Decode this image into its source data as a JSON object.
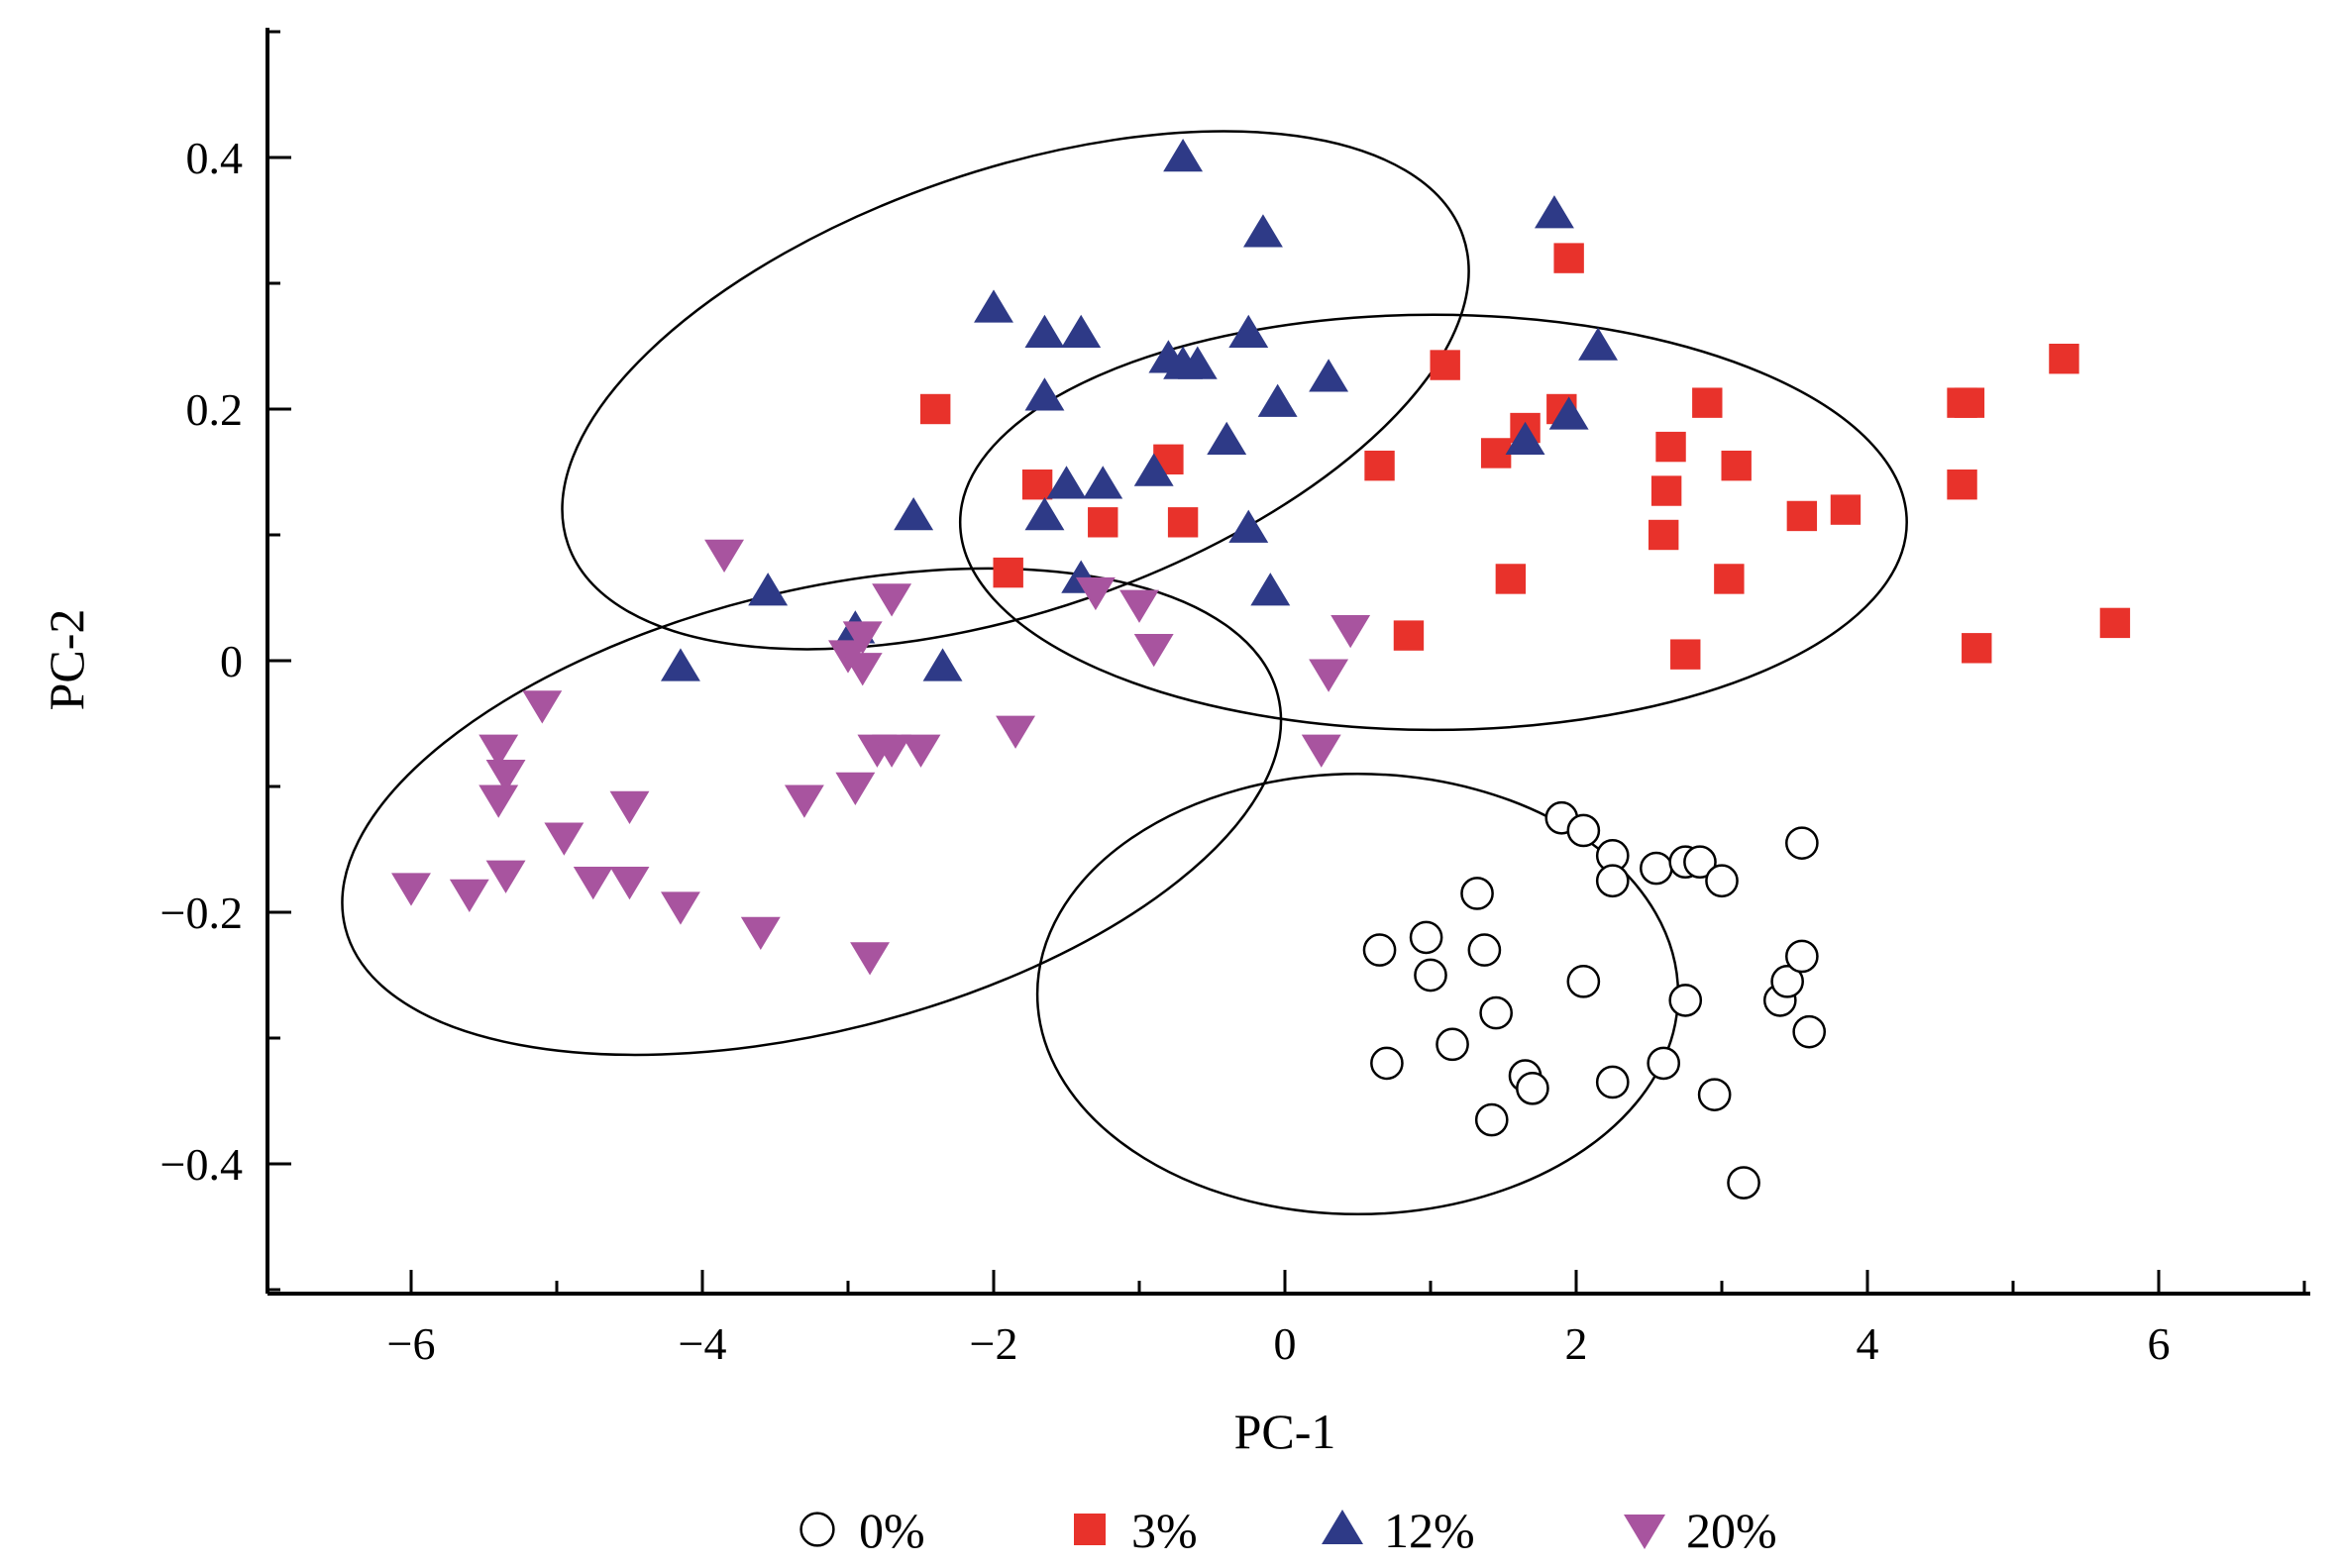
{
  "chart_data": {
    "type": "scatter",
    "title": "",
    "xlabel": "PC-1",
    "ylabel": "PC-2",
    "xlim": [
      -7,
      7
    ],
    "ylim": [
      -0.5,
      0.5
    ],
    "xticks": [
      -6,
      -4,
      -2,
      0,
      2,
      4,
      6
    ],
    "xtick_labels": [
      "−6",
      "−4",
      "−2",
      "0",
      "2",
      "4",
      "6"
    ],
    "yticks": [
      -0.4,
      -0.2,
      0,
      0.2,
      0.4
    ],
    "ytick_labels": [
      "−0.4",
      "−0.2",
      "0",
      "0.2",
      "0.4"
    ],
    "grid": false,
    "legend_position": "bottom",
    "series": [
      {
        "name": "0%",
        "marker": "circle-open",
        "color": "#000000",
        "points": [
          [
            0.65,
            -0.23
          ],
          [
            0.7,
            -0.32
          ],
          [
            0.97,
            -0.22
          ],
          [
            1.0,
            -0.25
          ],
          [
            1.15,
            -0.305
          ],
          [
            1.32,
            -0.185
          ],
          [
            1.37,
            -0.23
          ],
          [
            1.42,
            -0.365
          ],
          [
            1.45,
            -0.28
          ],
          [
            1.65,
            -0.33
          ],
          [
            1.7,
            -0.34
          ],
          [
            1.9,
            -0.125
          ],
          [
            2.05,
            -0.135
          ],
          [
            2.05,
            -0.255
          ],
          [
            2.25,
            -0.155
          ],
          [
            2.25,
            -0.175
          ],
          [
            2.25,
            -0.335
          ],
          [
            2.55,
            -0.165
          ],
          [
            2.6,
            -0.32
          ],
          [
            2.75,
            -0.27
          ],
          [
            2.75,
            -0.16
          ],
          [
            2.85,
            -0.16
          ],
          [
            2.95,
            -0.345
          ],
          [
            3.0,
            -0.175
          ],
          [
            3.15,
            -0.415
          ],
          [
            3.4,
            -0.27
          ],
          [
            3.45,
            -0.255
          ],
          [
            3.55,
            -0.145
          ],
          [
            3.55,
            -0.235
          ],
          [
            3.6,
            -0.295
          ]
        ]
      },
      {
        "name": "3%",
        "marker": "square",
        "color": "#e8322b",
        "points": [
          [
            -2.4,
            0.2
          ],
          [
            -1.7,
            0.14
          ],
          [
            -1.9,
            0.07
          ],
          [
            -1.25,
            0.11
          ],
          [
            -0.8,
            0.16
          ],
          [
            -0.7,
            0.11
          ],
          [
            0.65,
            0.155
          ],
          [
            0.85,
            0.02
          ],
          [
            1.1,
            0.235
          ],
          [
            1.45,
            0.165
          ],
          [
            1.55,
            0.065
          ],
          [
            1.65,
            0.185
          ],
          [
            1.9,
            0.2
          ],
          [
            1.95,
            0.32
          ],
          [
            2.6,
            0.1
          ],
          [
            2.62,
            0.135
          ],
          [
            2.65,
            0.17
          ],
          [
            2.75,
            0.005
          ],
          [
            2.9,
            0.205
          ],
          [
            3.05,
            0.065
          ],
          [
            3.1,
            0.155
          ],
          [
            3.55,
            0.115
          ],
          [
            3.85,
            0.12
          ],
          [
            4.65,
            0.14
          ],
          [
            4.65,
            0.205
          ],
          [
            4.7,
            0.205
          ],
          [
            4.75,
            0.01
          ],
          [
            5.35,
            0.24
          ],
          [
            5.7,
            0.03
          ]
        ]
      },
      {
        "name": "12%",
        "marker": "triangle-up",
        "color": "#2e3a87",
        "points": [
          [
            -4.15,
            -0.005
          ],
          [
            -3.55,
            0.055
          ],
          [
            -2.95,
            0.025
          ],
          [
            -2.55,
            0.115
          ],
          [
            -2.35,
            -0.005
          ],
          [
            -2.0,
            0.28
          ],
          [
            -1.65,
            0.26
          ],
          [
            -1.65,
            0.21
          ],
          [
            -1.65,
            0.115
          ],
          [
            -1.5,
            0.14
          ],
          [
            -1.4,
            0.26
          ],
          [
            -1.25,
            0.14
          ],
          [
            -1.4,
            0.065
          ],
          [
            -0.9,
            0.15
          ],
          [
            -0.8,
            0.24
          ],
          [
            -0.7,
            0.235
          ],
          [
            -0.6,
            0.235
          ],
          [
            -0.7,
            0.4
          ],
          [
            -0.4,
            0.175
          ],
          [
            -0.25,
            0.26
          ],
          [
            -0.25,
            0.105
          ],
          [
            -0.15,
            0.34
          ],
          [
            -0.05,
            0.205
          ],
          [
            -0.1,
            0.055
          ],
          [
            0.3,
            0.225
          ],
          [
            1.65,
            0.175
          ],
          [
            1.85,
            0.355
          ],
          [
            1.95,
            0.195
          ],
          [
            2.15,
            0.25
          ]
        ]
      },
      {
        "name": "20%",
        "marker": "triangle-down",
        "color": "#a8549f",
        "points": [
          [
            -6.0,
            -0.18
          ],
          [
            -5.6,
            -0.185
          ],
          [
            -5.35,
            -0.17
          ],
          [
            -5.4,
            -0.07
          ],
          [
            -5.35,
            -0.09
          ],
          [
            -5.4,
            -0.11
          ],
          [
            -5.1,
            -0.035
          ],
          [
            -4.95,
            -0.14
          ],
          [
            -4.75,
            -0.175
          ],
          [
            -4.5,
            -0.115
          ],
          [
            -4.5,
            -0.175
          ],
          [
            -4.15,
            -0.195
          ],
          [
            -3.85,
            0.085
          ],
          [
            -3.6,
            -0.215
          ],
          [
            -3.3,
            -0.11
          ],
          [
            -3.0,
            0.005
          ],
          [
            -2.95,
            -0.1
          ],
          [
            -2.9,
            0.02
          ],
          [
            -2.9,
            -0.005
          ],
          [
            -2.8,
            -0.07
          ],
          [
            -2.85,
            -0.235
          ],
          [
            -2.7,
            0.05
          ],
          [
            -2.7,
            -0.07
          ],
          [
            -2.5,
            -0.07
          ],
          [
            -1.85,
            -0.055
          ],
          [
            -1.3,
            0.055
          ],
          [
            -1.0,
            0.045
          ],
          [
            -0.9,
            0.01
          ],
          [
            0.3,
            -0.01
          ],
          [
            0.45,
            0.025
          ],
          [
            0.25,
            -0.07
          ]
        ]
      }
    ],
    "ellipses": [
      {
        "group": "0%",
        "cx": 0.5,
        "cy": -0.265,
        "rx": 2.2,
        "ry": 0.175,
        "angle": 0
      },
      {
        "group": "3%",
        "cx": 1.02,
        "cy": 0.11,
        "rx": 3.25,
        "ry": 0.165,
        "angle": 0
      },
      {
        "group": "12%",
        "cx": -1.85,
        "cy": 0.215,
        "rx": 3.25,
        "ry": 0.175,
        "angle": 19
      },
      {
        "group": "20%",
        "cx": -3.25,
        "cy": -0.12,
        "rx": 3.3,
        "ry": 0.175,
        "angle": 14
      }
    ]
  }
}
